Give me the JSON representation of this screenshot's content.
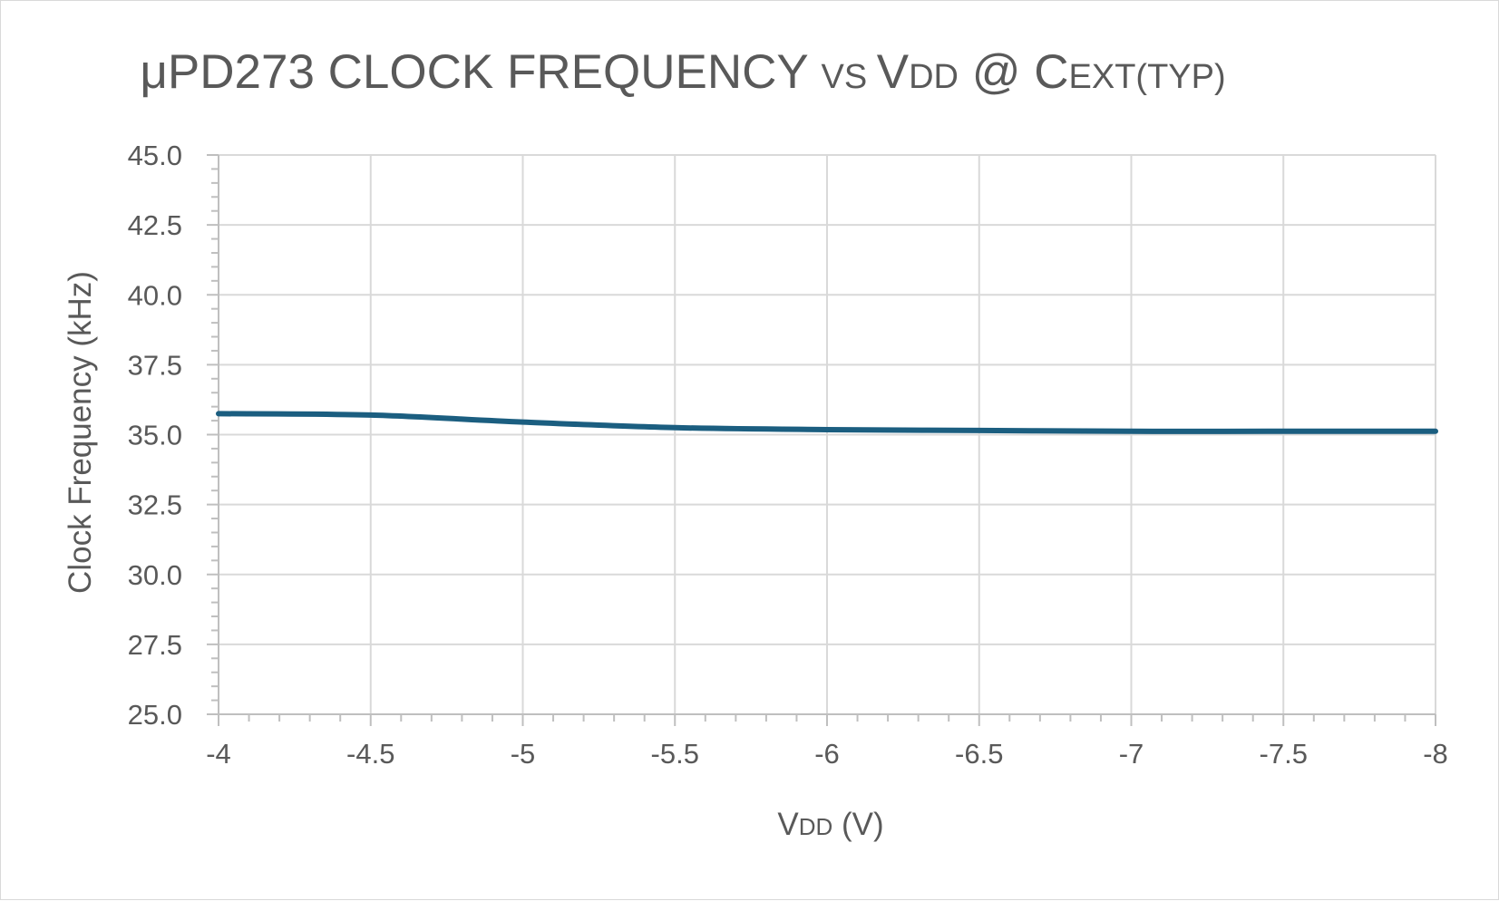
{
  "chart_data": {
    "type": "line",
    "title": {
      "parts": [
        {
          "text": "μPD273 CLOCK FREQUENCY ",
          "small": false
        },
        {
          "text": "VS ",
          "small": true
        },
        {
          "text": "V",
          "small": false
        },
        {
          "text": "DD",
          "small": true
        },
        {
          "text": " @ C",
          "small": false
        },
        {
          "text": "EXT(TYP)",
          "small": true
        }
      ]
    },
    "xlabel": {
      "parts": [
        {
          "text": "V",
          "small": false
        },
        {
          "text": "DD",
          "small": true
        },
        {
          "text": " (V)",
          "small": false
        }
      ]
    },
    "ylabel": "Clock Frequency (kHz)",
    "xlim": [
      -4,
      -8
    ],
    "ylim": [
      25.0,
      45.0
    ],
    "x_ticks": [
      -4,
      -4.5,
      -5,
      -5.5,
      -6,
      -6.5,
      -7,
      -7.5,
      -8
    ],
    "x_tick_labels": [
      "-4",
      "-4.5",
      "-5",
      "-5.5",
      "-6",
      "-6.5",
      "-7",
      "-7.5",
      "-8"
    ],
    "y_ticks": [
      25.0,
      27.5,
      30.0,
      32.5,
      35.0,
      37.5,
      40.0,
      42.5,
      45.0
    ],
    "y_tick_labels": [
      "25.0",
      "27.5",
      "30.0",
      "32.5",
      "35.0",
      "37.5",
      "40.0",
      "42.5",
      "45.0"
    ],
    "grid": true,
    "series": [
      {
        "color": "#1b5e80",
        "x": [
          -4,
          -4.5,
          -5,
          -5.5,
          -6,
          -6.5,
          -7,
          -7.5,
          -8
        ],
        "y": [
          35.75,
          35.7,
          35.45,
          35.25,
          35.18,
          35.15,
          35.12,
          35.12,
          35.12
        ]
      }
    ]
  }
}
